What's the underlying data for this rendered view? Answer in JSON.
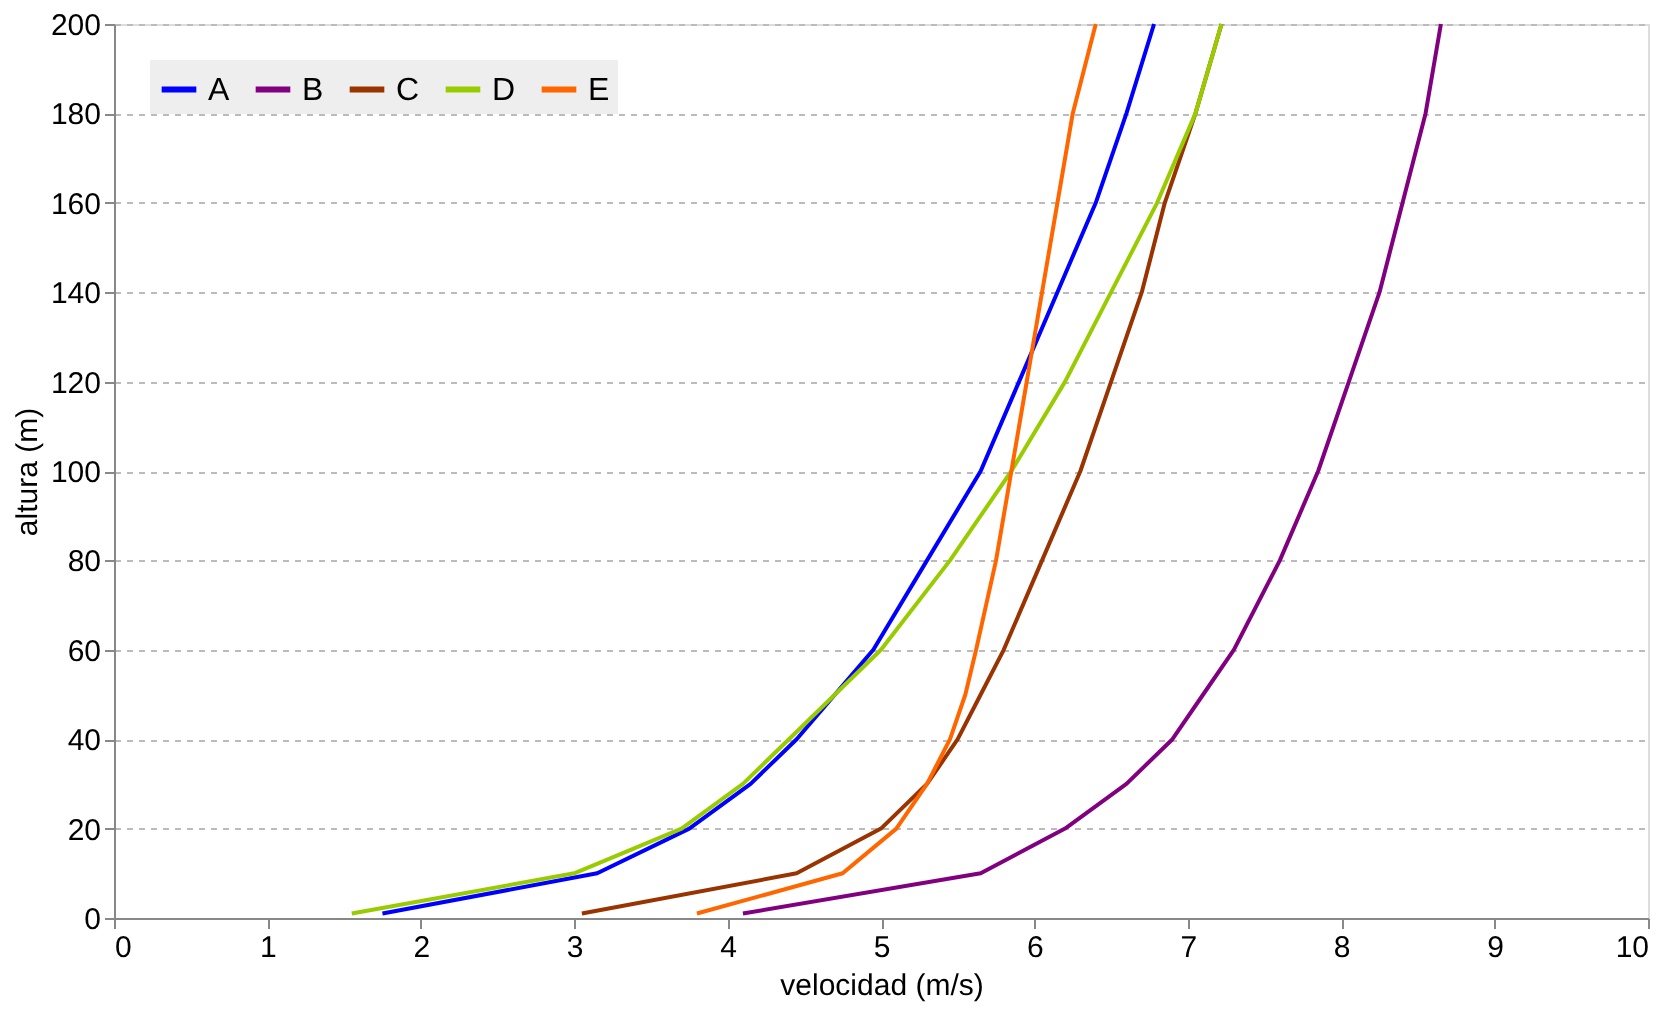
{
  "chart_data": {
    "type": "line",
    "xlabel": "velocidad (m/s)",
    "ylabel": "altura (m)",
    "xlim": [
      0,
      10
    ],
    "xticks": [
      0,
      1,
      2,
      3,
      4,
      5,
      6,
      7,
      8,
      9,
      10
    ],
    "ylim": [
      0,
      200
    ],
    "yticks": [
      0,
      20,
      40,
      60,
      80,
      100,
      120,
      140,
      160,
      180,
      200
    ],
    "grid": "y",
    "legend": "top left",
    "marker": "none",
    "line_style": "solid",
    "series": [
      {
        "name": "A",
        "color": "#0000ff",
        "x": [
          1.75,
          3.15,
          3.75,
          4.15,
          4.45,
          4.7,
          4.95,
          5.3,
          5.65,
          5.9,
          6.15,
          6.4,
          6.6,
          6.78
        ],
        "values": [
          1,
          10,
          20,
          30,
          40,
          50,
          60,
          80,
          100,
          120,
          140,
          160,
          180,
          200
        ]
      },
      {
        "name": "B",
        "color": "#800080",
        "x": [
          4.1,
          5.65,
          6.2,
          6.6,
          6.9,
          7.1,
          7.3,
          7.6,
          7.85,
          8.05,
          8.25,
          8.4,
          8.55,
          8.65
        ],
        "values": [
          1,
          10,
          20,
          30,
          40,
          50,
          60,
          80,
          100,
          120,
          140,
          160,
          180,
          200
        ]
      },
      {
        "name": "C",
        "color": "#993300",
        "x": [
          3.05,
          4.45,
          5.0,
          5.3,
          5.5,
          5.65,
          5.8,
          6.05,
          6.3,
          6.5,
          6.7,
          6.85,
          7.05,
          7.22
        ],
        "values": [
          1,
          10,
          20,
          30,
          40,
          50,
          60,
          80,
          100,
          120,
          140,
          160,
          180,
          200
        ]
      },
      {
        "name": "D",
        "color": "#99cc00",
        "x": [
          1.55,
          3.0,
          3.7,
          4.1,
          4.4,
          4.7,
          5.0,
          5.45,
          5.85,
          6.2,
          6.5,
          6.8,
          7.05,
          7.22
        ],
        "values": [
          1,
          10,
          20,
          30,
          40,
          50,
          60,
          80,
          100,
          120,
          140,
          160,
          180,
          200
        ]
      },
      {
        "name": "E",
        "color": "#ff6600",
        "x": [
          3.8,
          4.75,
          5.1,
          5.3,
          5.45,
          5.55,
          5.62,
          5.75,
          5.85,
          5.95,
          6.05,
          6.15,
          6.25,
          6.4
        ],
        "values": [
          1,
          10,
          20,
          30,
          40,
          50,
          60,
          80,
          100,
          120,
          140,
          160,
          180,
          200
        ]
      }
    ]
  }
}
